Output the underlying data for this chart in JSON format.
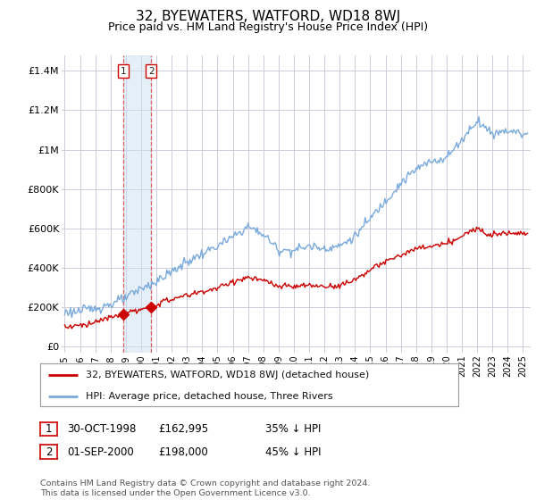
{
  "title": "32, BYEWATERS, WATFORD, WD18 8WJ",
  "subtitle": "Price paid vs. HM Land Registry's House Price Index (HPI)",
  "title_fontsize": 11,
  "subtitle_fontsize": 9,
  "background_color": "#ffffff",
  "grid_color": "#ccccdd",
  "hpi_color": "#7aaadd",
  "price_color": "#cc0000",
  "ylabel_values": [
    0,
    200000,
    400000,
    600000,
    800000,
    1000000,
    1200000,
    1400000
  ],
  "ylabel_labels": [
    "£0",
    "£200K",
    "£400K",
    "£600K",
    "£800K",
    "£1M",
    "£1.2M",
    "£1.4M"
  ],
  "ylim": [
    -30000,
    1480000
  ],
  "xlim_start": 1994.8,
  "xlim_end": 2025.5,
  "sale1_date": 1998.83,
  "sale1_price": 162995,
  "sale1_label": "1",
  "sale2_date": 2000.67,
  "sale2_price": 198000,
  "sale2_label": "2",
  "legend_line1": "32, BYEWATERS, WATFORD, WD18 8WJ (detached house)",
  "legend_line2": "HPI: Average price, detached house, Three Rivers",
  "table_row1": [
    "1",
    "30-OCT-1998",
    "£162,995",
    "35% ↓ HPI"
  ],
  "table_row2": [
    "2",
    "01-SEP-2000",
    "£198,000",
    "45% ↓ HPI"
  ],
  "footer": "Contains HM Land Registry data © Crown copyright and database right 2024.\nThis data is licensed under the Open Government Licence v3.0.",
  "vline1_x": 1998.83,
  "vline2_x": 2000.67,
  "hpi_breakpoints": [
    1995,
    1996,
    1997,
    1998,
    1999,
    2000,
    2001,
    2002,
    2003,
    2004,
    2005,
    2006,
    2007,
    2008,
    2009,
    2010,
    2011,
    2012,
    2013,
    2014,
    2015,
    2016,
    2017,
    2018,
    2019,
    2020,
    2021,
    2022,
    2023,
    2024,
    2025
  ],
  "hpi_values": [
    175000,
    180000,
    195000,
    215000,
    245000,
    295000,
    330000,
    380000,
    430000,
    470000,
    510000,
    555000,
    610000,
    570000,
    490000,
    490000,
    510000,
    500000,
    510000,
    560000,
    650000,
    740000,
    830000,
    900000,
    940000,
    960000,
    1050000,
    1150000,
    1080000,
    1100000,
    1080000
  ],
  "price_breakpoints": [
    1995,
    1996,
    1997,
    1998,
    1998.83,
    1999,
    2000,
    2000.67,
    2001,
    2002,
    2003,
    2004,
    2005,
    2006,
    2007,
    2008,
    2009,
    2010,
    2011,
    2012,
    2013,
    2014,
    2015,
    2016,
    2017,
    2018,
    2019,
    2020,
    2021,
    2022,
    2023,
    2024,
    2025
  ],
  "price_values": [
    100000,
    108000,
    125000,
    148000,
    162995,
    172000,
    185000,
    198000,
    215000,
    240000,
    260000,
    280000,
    295000,
    330000,
    350000,
    335000,
    305000,
    305000,
    310000,
    305000,
    310000,
    340000,
    390000,
    430000,
    465000,
    495000,
    510000,
    520000,
    560000,
    600000,
    570000,
    580000,
    575000
  ]
}
